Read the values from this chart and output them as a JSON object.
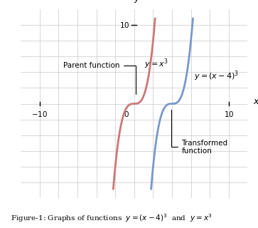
{
  "xlim": [
    -12,
    12
  ],
  "ylim": [
    -12,
    12
  ],
  "grid_color": "#c8c8c8",
  "parent_color": "#cc7777",
  "transformed_color": "#7799cc",
  "background_color": "#ffffff",
  "parent_label": "$y = x^3$",
  "transformed_label": "$y = (x-4)^3$",
  "annotation_parent": "Parent function",
  "annotation_transformed": "Transformed\nfunction",
  "caption": "Figure-1: Graphs of functions  $y=(x-4)^3$  and  $y=x^3$"
}
